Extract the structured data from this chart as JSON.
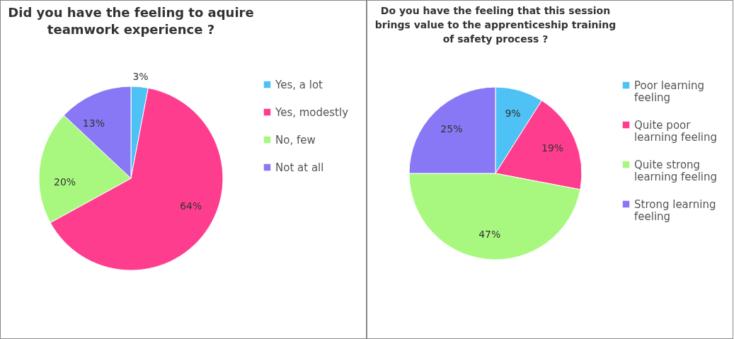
{
  "chart_data": [
    {
      "type": "pie",
      "title": "Did you have the feeling to aquire teamwork experience ?",
      "categories": [
        "Yes, a lot",
        "Yes, modestly",
        "No, few",
        "Not at all"
      ],
      "values": [
        3,
        64,
        20,
        13
      ],
      "value_labels": [
        "3%",
        "64%",
        "20%",
        "13%"
      ],
      "colors": [
        "#4ec1f5",
        "#ff3d8e",
        "#a8f880",
        "#8878f5"
      ],
      "legend": "right"
    },
    {
      "type": "pie",
      "title": "Do you have the feeling that this session brings value to the apprenticeship training of safety process ?",
      "categories": [
        "Poor learning feeling",
        "Quite poor learning feeling",
        "Quite strong learning feeling",
        "Strong learning feeling"
      ],
      "values": [
        9,
        19,
        47,
        25
      ],
      "value_labels": [
        "9%",
        "19%",
        "47%",
        "25%"
      ],
      "colors": [
        "#4ec1f5",
        "#ff3d8e",
        "#a8f880",
        "#8878f5"
      ],
      "legend": "right"
    }
  ]
}
